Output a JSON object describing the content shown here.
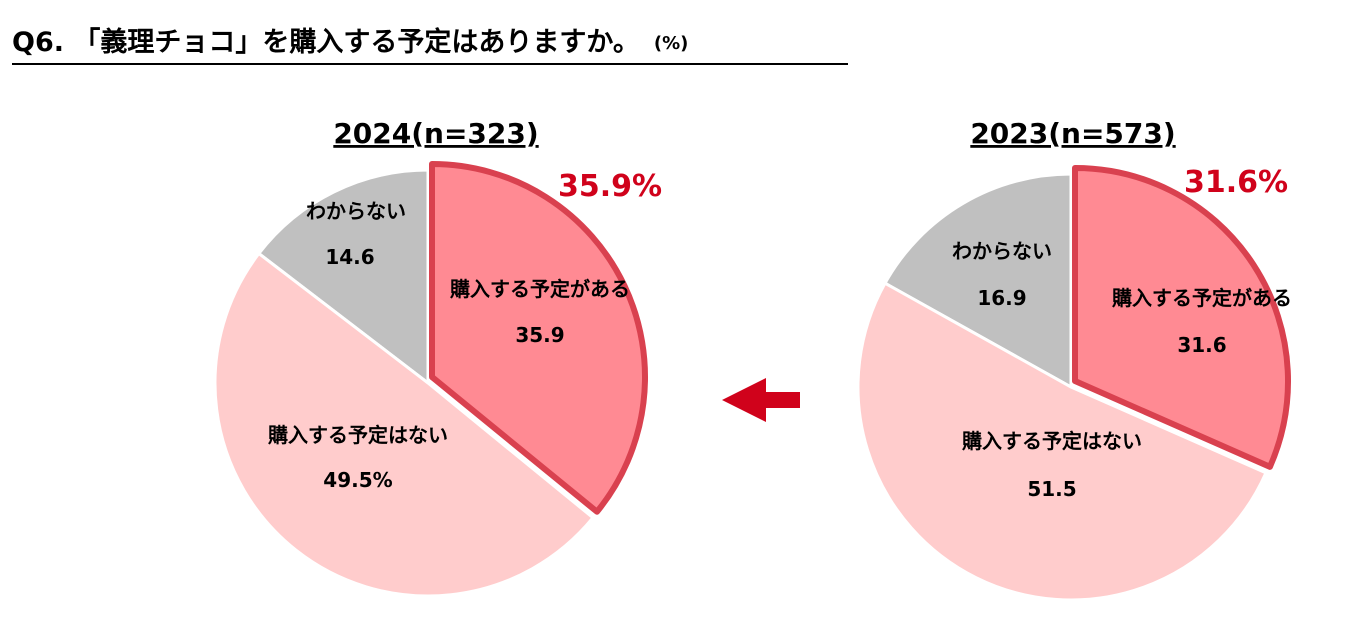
{
  "header": {
    "title": "Q6. 「義理チョコ」を購入する予定はありますか。",
    "unit": "(%)"
  },
  "colors": {
    "plan": "#ff8a93",
    "plan_border": "#d9414f",
    "no_plan": "#ffcccc",
    "unknown": "#c0c0c0",
    "accent": "#d0021b"
  },
  "chart_data": [
    {
      "type": "pie",
      "title": "2024(n=323)",
      "highlight": "35.9%",
      "slices": [
        {
          "label": "購入する予定がある",
          "value": 35.9,
          "display": "35.9"
        },
        {
          "label": "購入する予定はない",
          "value": 49.5,
          "display": "49.5%"
        },
        {
          "label": "わからない",
          "value": 14.6,
          "display": "14.6"
        }
      ]
    },
    {
      "type": "pie",
      "title": "2023(n=573)",
      "highlight": "31.6%",
      "slices": [
        {
          "label": "購入する予定がある",
          "value": 31.6,
          "display": "31.6"
        },
        {
          "label": "購入する予定はない",
          "value": 51.5,
          "display": "51.5"
        },
        {
          "label": "わからない",
          "value": 16.9,
          "display": "16.9"
        }
      ]
    }
  ]
}
